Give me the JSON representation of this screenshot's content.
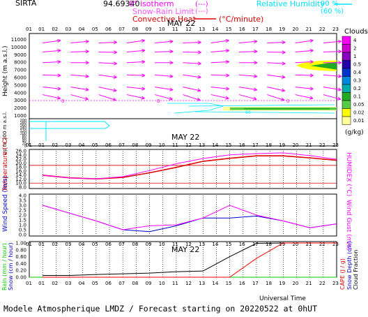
{
  "header": {
    "station": "SIRTA",
    "coords": "94.69340",
    "legend_isotherm": "0° isotherm",
    "legend_isotherm_sym": "(---)",
    "legend_snowrain": "Snow-Rain Limit",
    "legend_snowrain_sym": "(---)",
    "legend_convective": "Convective Heat",
    "legend_convective_unit": "(°C/minute)",
    "legend_rh": "Relative Humidity",
    "legend_rh_90": "90 %",
    "legend_rh_60": "(60 %)"
  },
  "footer": {
    "universal_time": "Universal Time",
    "model_line": "Modele Atmospherique LMDZ / Forecast starting on 20220522 at 0hUT"
  },
  "colors": {
    "magenta": "#ff00ff",
    "red": "#ff0000",
    "cyan": "#00e5ff",
    "blue": "#0000cc",
    "darkred": "#dd0000"
  },
  "chart_data": [
    {
      "type": "heatmap",
      "panel": "upper-air",
      "title": "MAY 22",
      "ylabel": "Height (m a.s.l.)",
      "ylabel2": "Up to 200 m a.s.l.",
      "hours": [
        "01",
        "02",
        "03",
        "04",
        "05",
        "06",
        "07",
        "08",
        "09",
        "10",
        "11",
        "12",
        "13",
        "14",
        "15",
        "16",
        "17",
        "18",
        "19",
        "20",
        "21",
        "22",
        "23"
      ],
      "y_ticks": [
        "11000",
        "10000",
        "9000",
        "8000",
        "7000",
        "6000",
        "5000",
        "4000",
        "3000",
        "2000",
        "1000"
      ],
      "y_ticks_low": [
        "200",
        "180",
        "160",
        "140",
        "120",
        "100",
        "80",
        "60",
        "40",
        "20",
        "0"
      ],
      "wind_rows": [
        10500,
        9300,
        7900,
        6300,
        4700,
        3700
      ],
      "zero_isotherm_label": "0",
      "rh_label": "60",
      "colorbar_title": "Clouds",
      "colorbar_unit": "(g/kg)",
      "colorbar_ticks": [
        "4",
        "2",
        "1",
        "0.5",
        "0.4",
        "0.3",
        "0.2",
        "0.1",
        "0.05",
        "0.02",
        "0.01"
      ],
      "colorbar_colors": [
        "#ff00ff",
        "#cc00cc",
        "#8800bb",
        "#2200aa",
        "#0033cc",
        "#0088dd",
        "#00aaaa",
        "#22aa22",
        "#55cc44",
        "#ffff00",
        "#ffff99"
      ],
      "cloud_patches": [
        {
          "from_hour": 20,
          "to_hour": 23,
          "height_min": 6800,
          "height_max": 8200,
          "peak": "0.05"
        },
        {
          "from_hour": 14.5,
          "to_hour": 23,
          "height_min": 1600,
          "height_max": 2100,
          "peak": "0.1"
        }
      ]
    },
    {
      "type": "line",
      "panel": "temperature",
      "title": "MAY 22",
      "ylabel": "Temperature (°C)",
      "ylabel2": "HUMIDEX (°C)",
      "y_ticks": [
        "26.0",
        "24.0",
        "22.0",
        "20.0",
        "18.0",
        "16.0",
        "14.0",
        "12.0",
        "10.0",
        "8.0"
      ],
      "ylim": [
        8,
        26
      ],
      "x": [
        1,
        3,
        5,
        7,
        9,
        11,
        13,
        15,
        17,
        19,
        21,
        23
      ],
      "series": [
        {
          "name": "Temperature",
          "values": [
            13.9,
            12.6,
            12.1,
            12.8,
            15.1,
            17.8,
            20.8,
            22.3,
            23.5,
            23.5,
            22.5,
            21.3
          ]
        },
        {
          "name": "HUMIDEX",
          "values": [
            13.9,
            12.6,
            12.1,
            13.2,
            16.2,
            19.6,
            22.2,
            24.0,
            24.6,
            25.0,
            23.6,
            21.8
          ]
        }
      ],
      "ref_lines": [
        18.8,
        10.0
      ]
    },
    {
      "type": "line",
      "panel": "wind",
      "ylabel": "Wind Speed (m/s)",
      "ylabel2": "Wind Gust (m/s)",
      "y_ticks": [
        "4.0",
        "3.5",
        "3.0",
        "2.5",
        "2.0",
        "1.5",
        "1.0",
        "0.5",
        "0.0"
      ],
      "ylim": [
        0,
        4
      ],
      "x": [
        1,
        3,
        5,
        7,
        9,
        11,
        13,
        15,
        17,
        19,
        21,
        23
      ],
      "series": [
        {
          "name": "Wind Speed",
          "values": [
            3.0,
            2.2,
            1.4,
            0.5,
            0.3,
            0.9,
            1.7,
            1.7,
            1.9,
            1.4,
            0.7,
            1.1
          ]
        },
        {
          "name": "Wind Gust",
          "values": [
            3.0,
            2.2,
            1.4,
            0.5,
            0.9,
            1.0,
            1.7,
            3.0,
            2.0,
            1.4,
            0.7,
            1.1
          ]
        }
      ]
    },
    {
      "type": "line",
      "panel": "precipitation",
      "title": "MAY 22",
      "ylabel": "Rain (mm / hour)",
      "ylabel2": "Snow (cm / hour)",
      "ylabel3": "CAPE (J / g)",
      "ylabel4": "Snow Depth (cm)",
      "ylabel5": "Cloud Fraction",
      "y_ticks": [
        "1.00",
        "0.80",
        "0.60",
        "0.40",
        "0.20",
        "0.00"
      ],
      "ylim": [
        0,
        1
      ],
      "x": [
        1,
        3,
        5,
        7,
        9,
        11,
        13,
        15,
        17,
        19,
        21,
        23
      ],
      "series": [
        {
          "name": "Cloud Fraction",
          "values": [
            0.05,
            0.05,
            0.08,
            0.1,
            0.12,
            0.16,
            0.18,
            0.6,
            0.99,
            1.0,
            1.0,
            1.0
          ]
        },
        {
          "name": "CAPE",
          "values": [
            0,
            0,
            0,
            0,
            0,
            0,
            0,
            0,
            0.55,
            1.0,
            1.0,
            1.0
          ]
        }
      ]
    }
  ]
}
